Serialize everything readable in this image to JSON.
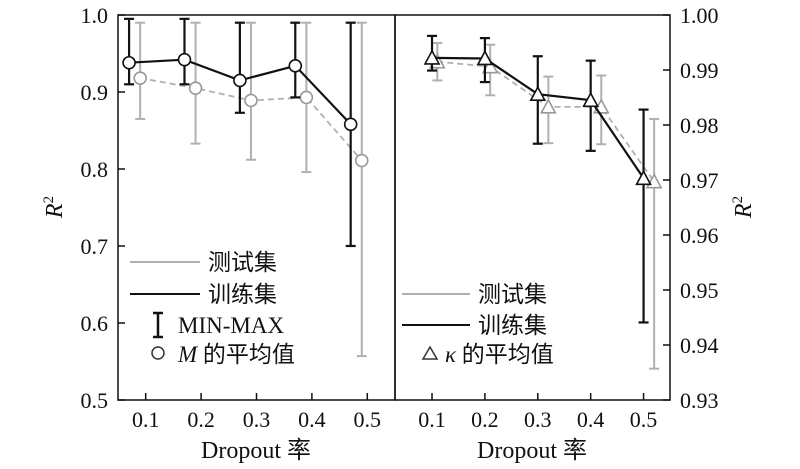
{
  "chart_data": [
    {
      "type": "line",
      "panel": "left",
      "xlabel": "Dropout 率",
      "ylabel_main": "R",
      "ylabel_sup": "2",
      "x_ticks": [
        "0.1",
        "0.2",
        "0.3",
        "0.4",
        "0.5"
      ],
      "y_ticks": [
        "0.5",
        "0.6",
        "0.7",
        "0.8",
        "0.9",
        "1.0"
      ],
      "xlim": [
        0.05,
        0.55
      ],
      "ylim": [
        0.5,
        1.0
      ],
      "legend": {
        "position": "lower-left",
        "test": "测试集",
        "train": "训练集",
        "errorbar": "MIN-MAX",
        "marker_prefix": "M",
        "marker_suffix": " 的平均值"
      },
      "series": [
        {
          "name": "训练集",
          "color": "#111111",
          "line_style": "solid",
          "x": [
            0.07,
            0.17,
            0.27,
            0.37,
            0.47
          ],
          "y": [
            0.938,
            0.942,
            0.915,
            0.934,
            0.858
          ],
          "min": [
            0.91,
            0.91,
            0.873,
            0.893,
            0.7
          ],
          "max": [
            0.995,
            0.995,
            0.99,
            0.99,
            0.99
          ]
        },
        {
          "name": "测试集",
          "color": "#b0b0b0",
          "line_style": "dashed",
          "x": [
            0.09,
            0.19,
            0.29,
            0.39,
            0.49
          ],
          "y": [
            0.918,
            0.905,
            0.889,
            0.893,
            0.811
          ],
          "min": [
            0.865,
            0.833,
            0.812,
            0.796,
            0.557
          ],
          "max": [
            0.99,
            0.99,
            0.99,
            0.99,
            0.99
          ]
        }
      ]
    },
    {
      "type": "line",
      "panel": "right",
      "xlabel": "Dropout 率",
      "ylabel_main": "R",
      "ylabel_sup": "2",
      "x_ticks": [
        "0.1",
        "0.2",
        "0.3",
        "0.4",
        "0.5"
      ],
      "y_ticks": [
        "0.93",
        "0.94",
        "0.95",
        "0.96",
        "0.97",
        "0.98",
        "0.99",
        "1.00"
      ],
      "xlim": [
        0.03,
        0.55
      ],
      "ylim": [
        0.93,
        1.0
      ],
      "legend": {
        "position": "lower-left",
        "test": "测试集",
        "train": "训练集",
        "marker_prefix": "κ",
        "marker_suffix": " 的平均值"
      },
      "series": [
        {
          "name": "训练集",
          "color": "#111111",
          "line_style": "solid",
          "x": [
            0.1,
            0.2,
            0.3,
            0.4,
            0.5
          ],
          "y": [
            0.9922,
            0.9921,
            0.9856,
            0.9845,
            0.9703
          ],
          "min": [
            0.9899,
            0.9878,
            0.9766,
            0.9753,
            0.9441
          ],
          "max": [
            0.9962,
            0.9958,
            0.9925,
            0.9917,
            0.9828
          ]
        },
        {
          "name": "测试集",
          "color": "#b0b0b0",
          "line_style": "dashed",
          "x": [
            0.11,
            0.21,
            0.32,
            0.42,
            0.52
          ],
          "y": [
            0.9915,
            0.9906,
            0.9833,
            0.9833,
            0.9697
          ],
          "min": [
            0.9881,
            0.9854,
            0.9767,
            0.9765,
            0.9357
          ],
          "max": [
            0.9949,
            0.9946,
            0.9888,
            0.989,
            0.9811
          ]
        }
      ]
    }
  ]
}
